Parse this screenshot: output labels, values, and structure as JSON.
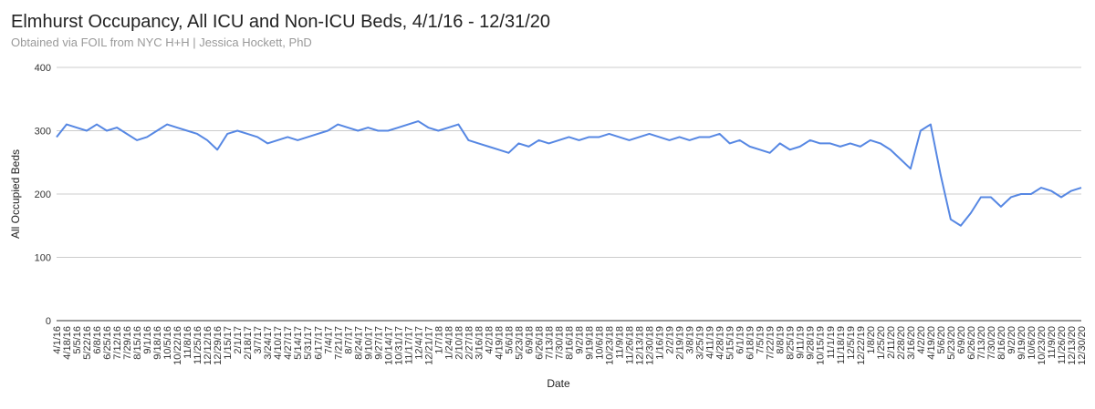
{
  "chart_data": {
    "type": "line",
    "title": "Elmhurst Occupancy, All ICU and Non-ICU Beds, 4/1/16 - 12/31/20",
    "subtitle": "Obtained via FOIL from NYC H+H | Jessica Hockett, PhD",
    "x_label": "Date",
    "y_label": "All Occupied Beds",
    "categories": [
      "4/1/16",
      "4/18/16",
      "5/5/16",
      "5/22/16",
      "6/8/16",
      "6/25/16",
      "7/12/16",
      "7/29/16",
      "8/15/16",
      "9/1/16",
      "9/18/16",
      "10/5/16",
      "10/22/16",
      "11/8/16",
      "11/25/16",
      "12/12/16",
      "12/29/16",
      "1/15/17",
      "2/1/17",
      "2/18/17",
      "3/7/17",
      "3/24/17",
      "4/10/17",
      "4/27/17",
      "5/14/17",
      "5/31/17",
      "6/17/17",
      "7/4/17",
      "7/21/17",
      "8/7/17",
      "8/24/17",
      "9/10/17",
      "9/27/17",
      "10/14/17",
      "10/31/17",
      "11/17/17",
      "12/4/17",
      "12/21/17",
      "1/7/18",
      "1/24/18",
      "2/10/18",
      "2/27/18",
      "3/16/18",
      "4/2/18",
      "4/19/18",
      "5/6/18",
      "5/23/18",
      "6/9/18",
      "6/26/18",
      "7/13/18",
      "7/30/18",
      "8/16/18",
      "9/2/18",
      "9/19/18",
      "10/6/18",
      "10/23/18",
      "11/9/18",
      "11/26/18",
      "12/13/18",
      "12/30/18",
      "1/16/19",
      "2/2/19",
      "2/19/19",
      "3/8/19",
      "3/25/19",
      "4/11/19",
      "4/28/19",
      "5/15/19",
      "6/1/19",
      "6/18/19",
      "7/5/19",
      "7/22/19",
      "8/8/19",
      "8/25/19",
      "9/11/19",
      "9/28/19",
      "10/15/19",
      "11/1/19",
      "11/18/19",
      "12/5/19",
      "12/22/19",
      "1/8/20",
      "1/25/20",
      "2/11/20",
      "2/28/20",
      "3/16/20",
      "4/2/20",
      "4/19/20",
      "5/6/20",
      "5/23/20",
      "6/9/20",
      "6/26/20",
      "7/13/20",
      "7/30/20",
      "8/16/20",
      "9/2/20",
      "9/19/20",
      "10/6/20",
      "10/23/20",
      "11/9/20",
      "11/26/20",
      "12/13/20",
      "12/30/20"
    ],
    "series": [
      {
        "color": "#5687e3",
        "values": [
          290,
          310,
          305,
          300,
          310,
          300,
          305,
          295,
          285,
          290,
          300,
          310,
          305,
          300,
          295,
          285,
          270,
          295,
          300,
          295,
          290,
          280,
          285,
          290,
          285,
          290,
          295,
          300,
          310,
          305,
          300,
          305,
          300,
          300,
          305,
          310,
          315,
          305,
          300,
          305,
          310,
          285,
          280,
          275,
          270,
          265,
          280,
          275,
          285,
          280,
          285,
          290,
          285,
          290,
          290,
          295,
          290,
          285,
          290,
          295,
          290,
          285,
          290,
          285,
          290,
          290,
          295,
          280,
          285,
          275,
          270,
          265,
          280,
          270,
          275,
          285,
          280,
          280,
          275,
          280,
          275,
          285,
          280,
          270,
          255,
          240,
          300,
          310,
          230,
          160,
          150,
          170,
          195,
          195,
          180,
          195,
          200,
          200,
          210,
          205,
          195,
          205,
          210
        ]
      }
    ],
    "ylim": [
      0,
      400
    ],
    "yticks": [
      0,
      100,
      200,
      300,
      400
    ],
    "grid": true
  }
}
